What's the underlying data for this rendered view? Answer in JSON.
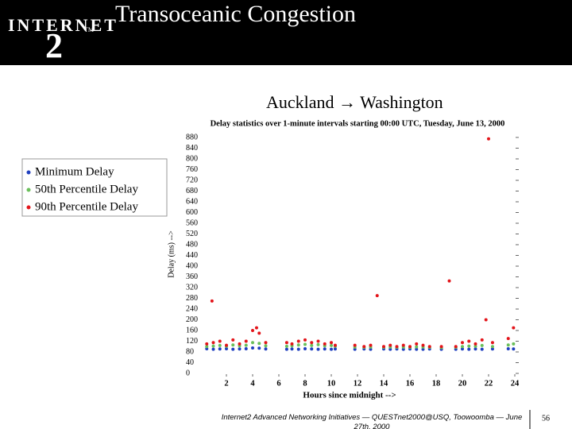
{
  "header": {
    "logo_text": "INTERNET",
    "logo_mark": "2",
    "logo_tm": "TM",
    "title": "Transoceanic Congestion"
  },
  "subtitle": "Auckland → Washington",
  "chart_data": {
    "type": "scatter",
    "title": "Delay statistics over 1-minute intervals starting 00:00 UTC, Tuesday, June 13, 2000",
    "x_label": "Hours since midnight -->",
    "y_label": "Delay (ms) -->",
    "xlim": [
      0,
      24
    ],
    "xticks": [
      2,
      4,
      6,
      8,
      10,
      12,
      14,
      16,
      18,
      20,
      22,
      24
    ],
    "ylim": [
      0,
      880
    ],
    "yticks": [
      0,
      40,
      80,
      120,
      160,
      200,
      240,
      280,
      320,
      360,
      400,
      440,
      480,
      520,
      560,
      600,
      640,
      680,
      720,
      760,
      800,
      840,
      880
    ],
    "series": [
      {
        "name": "Minimum Delay",
        "color": "#1f3fbf",
        "x": [
          0.5,
          1,
          1.5,
          2,
          2.5,
          3,
          3.5,
          4,
          4.5,
          5,
          6.6,
          7,
          7.5,
          8,
          8.5,
          9,
          9.5,
          10,
          10.3,
          11.8,
          12.5,
          13,
          14,
          14.5,
          15,
          15.5,
          16,
          16.5,
          17,
          17.5,
          18.4,
          19.5,
          20,
          20.5,
          21,
          21.5,
          22.3,
          23.5,
          23.9
        ],
        "values": [
          92,
          90,
          91,
          92,
          90,
          91,
          92,
          95,
          94,
          91,
          90,
          91,
          90,
          92,
          91,
          90,
          91,
          90,
          91,
          90,
          91,
          90,
          91,
          90,
          91,
          90,
          91,
          90,
          90,
          91,
          90,
          90,
          91,
          90,
          91,
          90,
          91,
          92,
          91
        ]
      },
      {
        "name": "50th Percentile Delay",
        "color": "#6abf5a",
        "x": [
          0.5,
          1,
          1.5,
          2,
          2.5,
          3,
          3.5,
          4,
          4.5,
          5,
          6.6,
          7,
          7.5,
          8,
          8.5,
          9,
          9.5,
          10,
          10.3,
          11.8,
          12.5,
          13,
          14,
          14.5,
          15,
          15.5,
          16,
          16.5,
          17,
          17.5,
          18.4,
          19.5,
          20,
          20.5,
          21,
          21.5,
          22.3,
          23.5,
          23.9
        ],
        "values": [
          100,
          102,
          104,
          101,
          106,
          103,
          105,
          115,
          112,
          103,
          101,
          103,
          106,
          108,
          104,
          107,
          103,
          104,
          101,
          98,
          97,
          98,
          97,
          98,
          97,
          98,
          97,
          99,
          98,
          97,
          96,
          97,
          100,
          102,
          101,
          104,
          100,
          106,
          110
        ]
      },
      {
        "name": "90th Percentile Delay",
        "color": "#e3141a",
        "x": [
          0.5,
          0.9,
          1,
          1.5,
          2,
          2.5,
          3,
          3.5,
          4,
          4.3,
          4.5,
          5,
          6.6,
          7,
          7.5,
          8,
          8.5,
          9,
          9.5,
          10,
          10.3,
          11.8,
          12.5,
          13,
          13.5,
          14,
          14.5,
          15,
          15.5,
          16,
          16.5,
          17,
          17.5,
          18.4,
          19,
          19.5,
          20,
          20.5,
          21,
          21.5,
          21.8,
          22,
          22.3,
          23.5,
          23.9
        ],
        "values": [
          110,
          270,
          115,
          120,
          105,
          125,
          110,
          120,
          160,
          170,
          150,
          115,
          115,
          110,
          120,
          125,
          115,
          120,
          110,
          115,
          105,
          105,
          100,
          105,
          290,
          100,
          105,
          100,
          105,
          100,
          110,
          105,
          100,
          100,
          345,
          100,
          115,
          120,
          110,
          125,
          200,
          875,
          115,
          130,
          170
        ]
      }
    ]
  },
  "footer": {
    "text": "Internet2 Advanced Networking Initiatives — QUESTnet2000@USQ, Toowoomba — June 27th, 2000",
    "page": "56"
  }
}
